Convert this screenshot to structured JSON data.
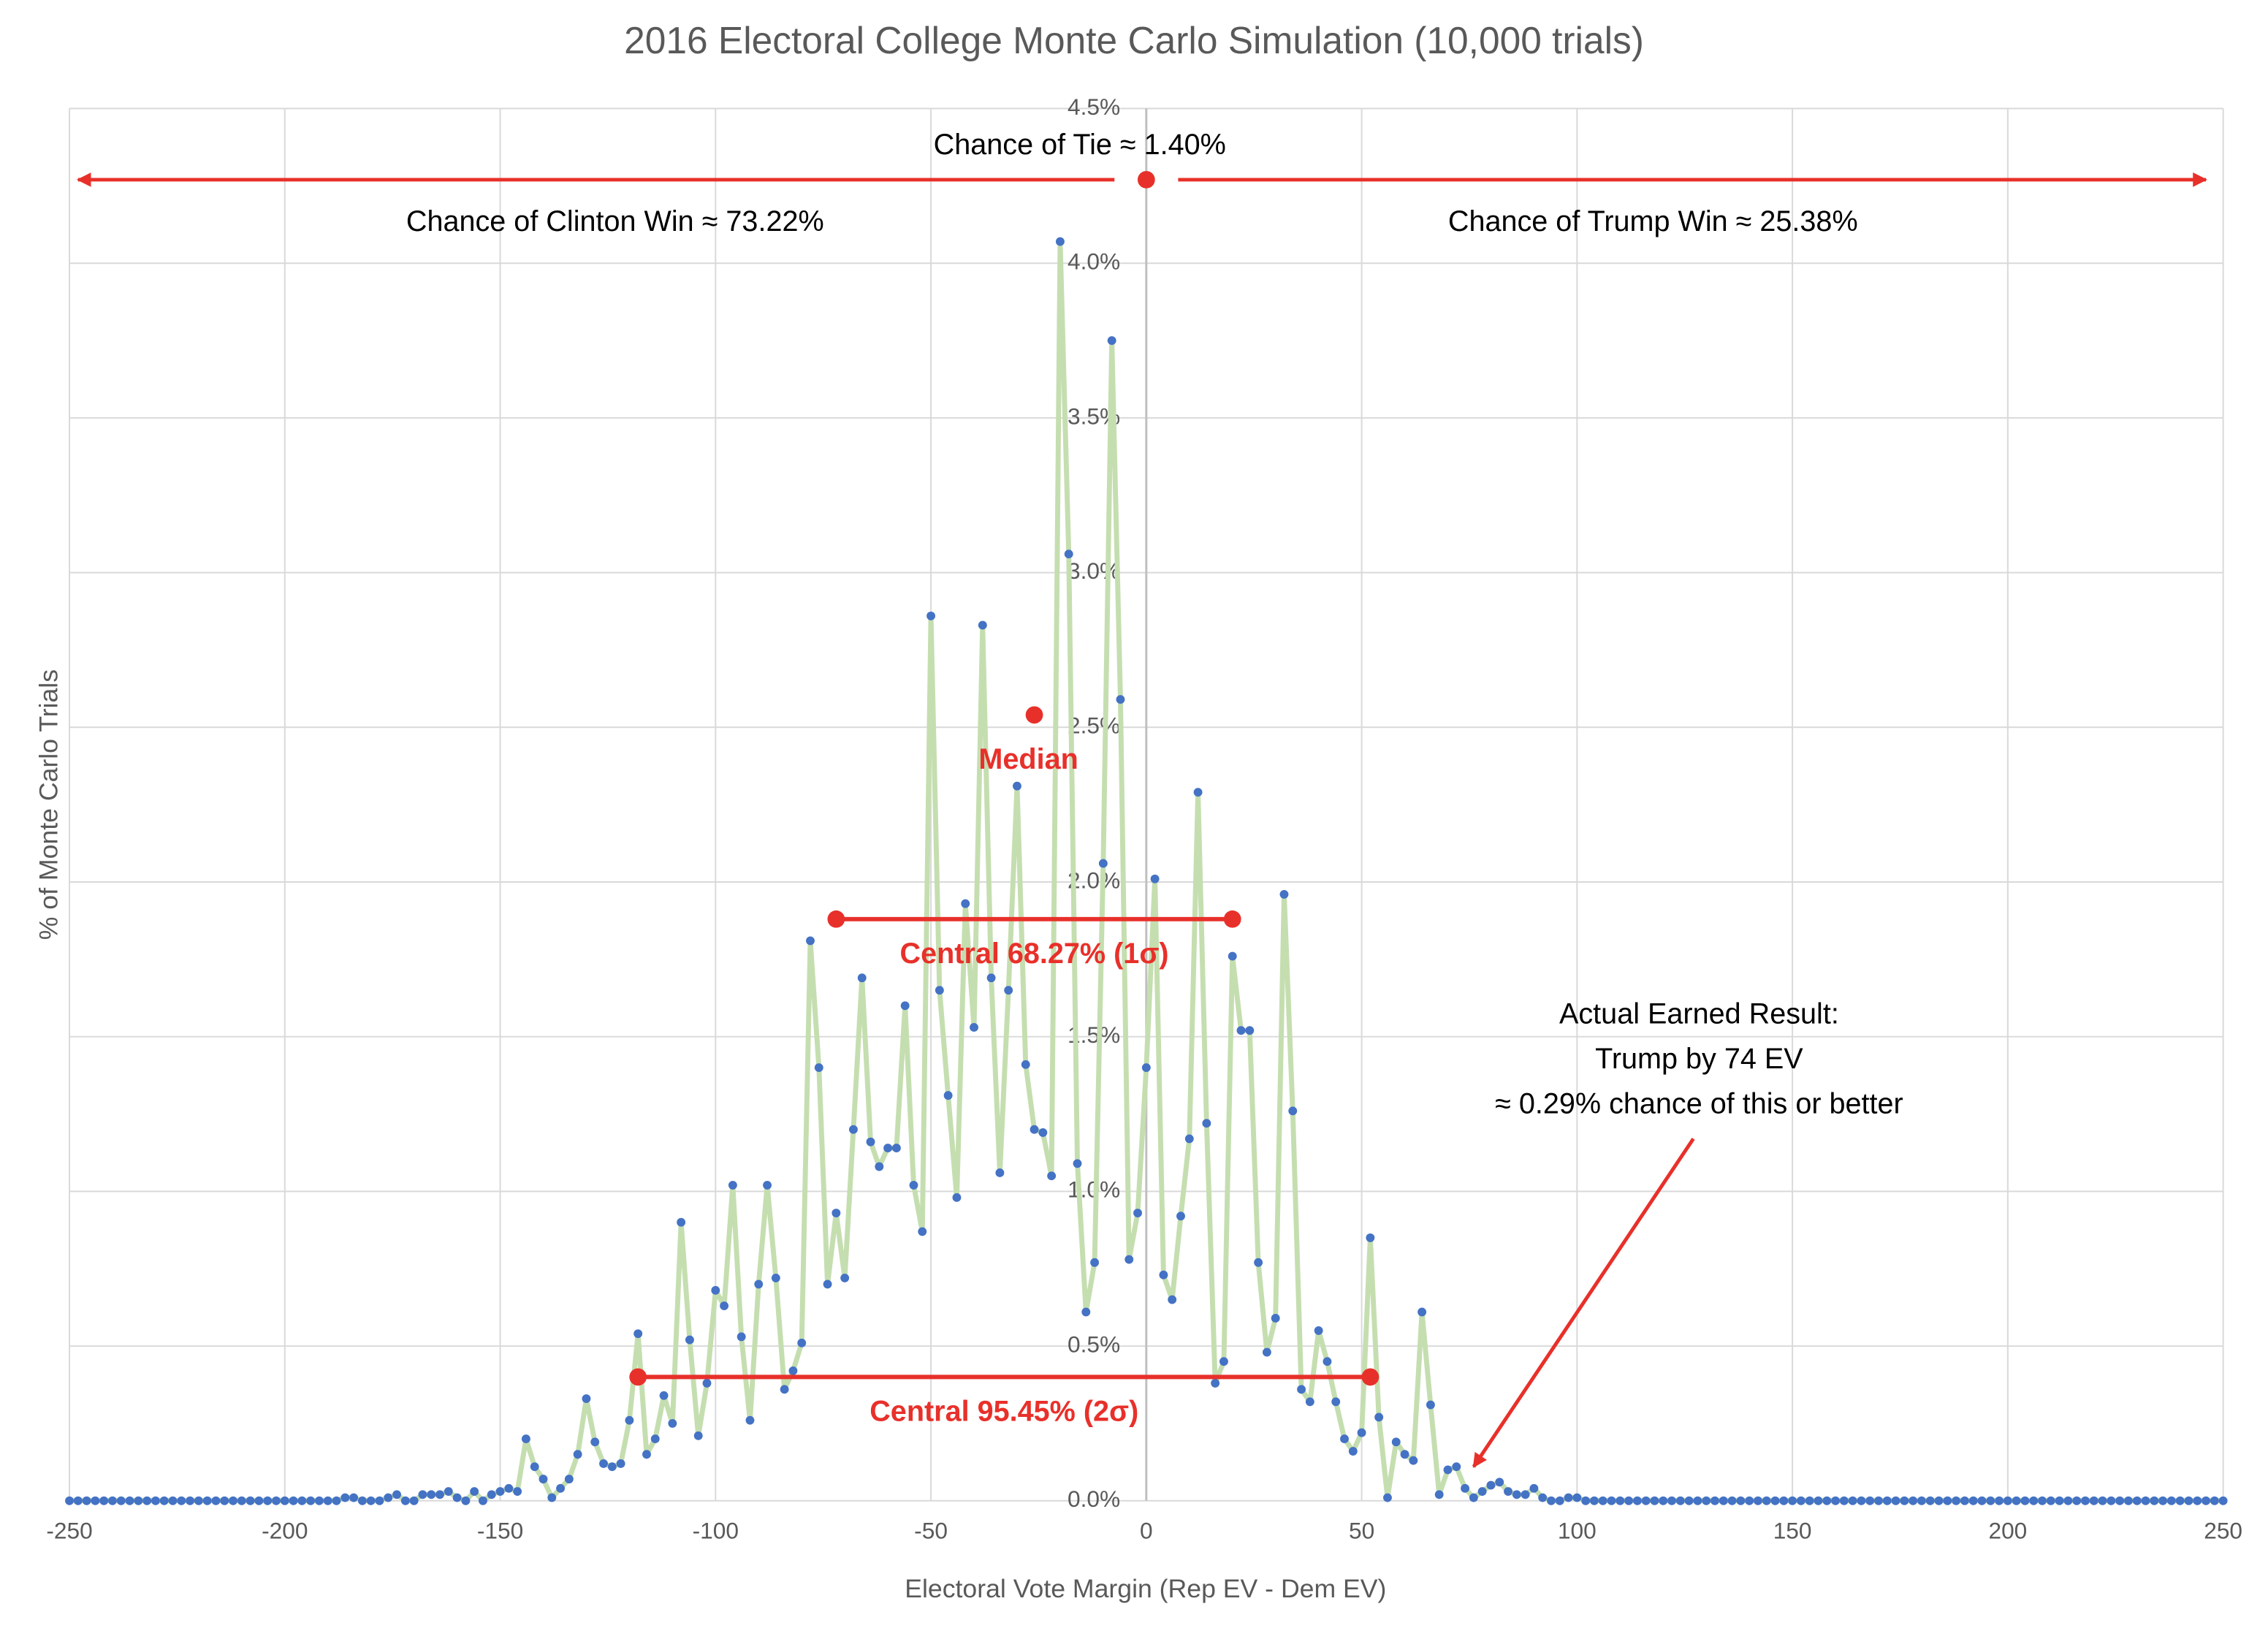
{
  "chart_data": {
    "type": "line",
    "title": "2016 Electoral College Monte Carlo Simulation (10,000 trials)",
    "x_label": "Electoral Vote Margin (Rep EV - Dem EV)",
    "y_label": "% of Monte Carlo Trials",
    "x": [
      -250,
      -248,
      -246,
      -244,
      -242,
      -240,
      -238,
      -236,
      -234,
      -232,
      -230,
      -228,
      -226,
      -224,
      -222,
      -220,
      -218,
      -216,
      -214,
      -212,
      -210,
      -208,
      -206,
      -204,
      -202,
      -200,
      -198,
      -196,
      -194,
      -192,
      -190,
      -188,
      -186,
      -184,
      -182,
      -180,
      -178,
      -176,
      -174,
      -172,
      -170,
      -168,
      -166,
      -164,
      -162,
      -160,
      -158,
      -156,
      -154,
      -152,
      -150,
      -148,
      -146,
      -144,
      -142,
      -140,
      -138,
      -136,
      -134,
      -132,
      -130,
      -128,
      -126,
      -124,
      -122,
      -120,
      -118,
      -116,
      -114,
      -112,
      -110,
      -108,
      -106,
      -104,
      -102,
      -100,
      -98,
      -96,
      -94,
      -92,
      -90,
      -88,
      -86,
      -84,
      -82,
      -80,
      -78,
      -76,
      -74,
      -72,
      -70,
      -68,
      -66,
      -64,
      -62,
      -60,
      -58,
      -56,
      -54,
      -52,
      -50,
      -48,
      -46,
      -44,
      -42,
      -40,
      -38,
      -36,
      -34,
      -32,
      -30,
      -28,
      -26,
      -24,
      -22,
      -20,
      -18,
      -16,
      -14,
      -12,
      -10,
      -8,
      -6,
      -4,
      -2,
      0,
      2,
      4,
      6,
      8,
      10,
      12,
      14,
      16,
      18,
      20,
      22,
      24,
      26,
      28,
      30,
      32,
      34,
      36,
      38,
      40,
      42,
      44,
      46,
      48,
      50,
      52,
      54,
      56,
      58,
      60,
      62,
      64,
      66,
      68,
      70,
      72,
      74,
      76,
      78,
      80,
      82,
      84,
      86,
      88,
      90,
      92,
      94,
      96,
      98,
      100,
      102,
      104,
      106,
      108,
      110,
      112,
      114,
      116,
      118,
      120,
      122,
      124,
      126,
      128,
      130,
      132,
      134,
      136,
      138,
      140,
      142,
      144,
      146,
      148,
      150,
      152,
      154,
      156,
      158,
      160,
      162,
      164,
      166,
      168,
      170,
      172,
      174,
      176,
      178,
      180,
      182,
      184,
      186,
      188,
      190,
      192,
      194,
      196,
      198,
      200,
      202,
      204,
      206,
      208,
      210,
      212,
      214,
      216,
      218,
      220,
      222,
      224,
      226,
      228,
      230,
      232,
      234,
      236,
      238,
      240,
      242,
      244,
      246,
      248,
      250
    ],
    "series": [
      {
        "line_color": "#c5deb0",
        "color": "#4472c4",
        "values": [
          0,
          0,
          0,
          0,
          0,
          0,
          0,
          0,
          0,
          0,
          0,
          0,
          0,
          0,
          0,
          0,
          0,
          0,
          0,
          0,
          0,
          0,
          0,
          0,
          0,
          0,
          0,
          0,
          0,
          0,
          0,
          0,
          0.01,
          0.01,
          0,
          0,
          0,
          0.01,
          0.02,
          0,
          0,
          0.02,
          0.02,
          0.02,
          0.03,
          0.01,
          0,
          0.03,
          0,
          0.02,
          0.03,
          0.04,
          0.03,
          0.2,
          0.11,
          0.07,
          0.01,
          0.04,
          0.07,
          0.15,
          0.33,
          0.19,
          0.12,
          0.11,
          0.12,
          0.26,
          0.54,
          0.15,
          0.2,
          0.34,
          0.25,
          0.9,
          0.52,
          0.21,
          0.38,
          0.68,
          0.63,
          1.02,
          0.53,
          0.26,
          0.7,
          1.02,
          0.72,
          0.36,
          0.42,
          0.51,
          1.81,
          1.4,
          0.7,
          0.93,
          0.72,
          1.2,
          1.69,
          1.16,
          1.08,
          1.14,
          1.14,
          1.6,
          1.02,
          0.87,
          2.86,
          1.65,
          1.31,
          0.98,
          1.93,
          1.53,
          2.83,
          1.69,
          1.06,
          1.65,
          2.31,
          1.41,
          1.2,
          1.19,
          1.05,
          4.07,
          3.06,
          1.09,
          0.61,
          0.77,
          2.06,
          3.75,
          2.59,
          0.78,
          0.93,
          1.4,
          2.01,
          0.73,
          0.65,
          0.92,
          1.17,
          2.29,
          1.22,
          0.38,
          0.45,
          1.76,
          1.52,
          1.52,
          0.77,
          0.48,
          0.59,
          1.96,
          1.26,
          0.36,
          0.32,
          0.55,
          0.45,
          0.32,
          0.2,
          0.16,
          0.22,
          0.85,
          0.27,
          0.01,
          0.19,
          0.15,
          0.13,
          0.61,
          0.31,
          0.02,
          0.1,
          0.11,
          0.04,
          0.01,
          0.03,
          0.05,
          0.06,
          0.03,
          0.02,
          0.02,
          0.04,
          0.01,
          0,
          0,
          0.01,
          0.01,
          0,
          0,
          0,
          0,
          0,
          0,
          0,
          0,
          0,
          0,
          0,
          0,
          0,
          0,
          0,
          0,
          0,
          0,
          0,
          0,
          0,
          0,
          0,
          0,
          0,
          0,
          0,
          0,
          0,
          0,
          0,
          0,
          0,
          0,
          0,
          0,
          0,
          0,
          0,
          0,
          0,
          0,
          0,
          0,
          0,
          0,
          0,
          0,
          0,
          0,
          0,
          0,
          0,
          0,
          0,
          0,
          0,
          0,
          0,
          0,
          0,
          0,
          0,
          0,
          0,
          0,
          0,
          0,
          0,
          0,
          0,
          0,
          0,
          0,
          0
        ]
      }
    ],
    "xlim": [
      -250,
      250
    ],
    "ylim": [
      0,
      4.5
    ],
    "xticks": [
      -250,
      -200,
      -150,
      -100,
      -50,
      0,
      50,
      100,
      150,
      200,
      250
    ],
    "yticks": [
      {
        "value": 0,
        "label": "0.0%"
      },
      {
        "value": 0.5,
        "label": "0.5%"
      },
      {
        "value": 1,
        "label": "1.0%"
      },
      {
        "value": 1.5,
        "label": "1.5%"
      },
      {
        "value": 2,
        "label": "2.0%"
      },
      {
        "value": 2.5,
        "label": "2.5%"
      },
      {
        "value": 3,
        "label": "3.0%"
      },
      {
        "value": 3.5,
        "label": "3.5%"
      },
      {
        "value": 4,
        "label": "4.0%"
      },
      {
        "value": 4.5,
        "label": "4.5%"
      }
    ],
    "grid": true,
    "annotation_color": "#e8302a",
    "annotations": {
      "tie": {
        "text": "Chance of Tie ≈ 1.40%",
        "x": 0,
        "y": 4.27
      },
      "clinton": {
        "text": "Chance of Clinton Win ≈ 73.22%",
        "x": -248
      },
      "trump": {
        "text": "Chance of Trump Win ≈ 25.38%",
        "x": 246
      },
      "median": {
        "text": "Median",
        "x": -26,
        "y": 2.54
      },
      "sigma1": {
        "text": "Central 68.27% (1σ)",
        "x1": -72,
        "x2": 20,
        "y": 1.88
      },
      "sigma2": {
        "text": "Central 95.45% (2σ)",
        "x1": -118,
        "x2": 52,
        "y": 0.4
      },
      "actual": {
        "lines": [
          "Actual Earned Result:",
          "Trump by 74 EV",
          "≈ 0.29% chance of this or better"
        ],
        "x1": 127,
        "y1": 1.17,
        "x2": 76,
        "y2": 0.11
      }
    }
  }
}
